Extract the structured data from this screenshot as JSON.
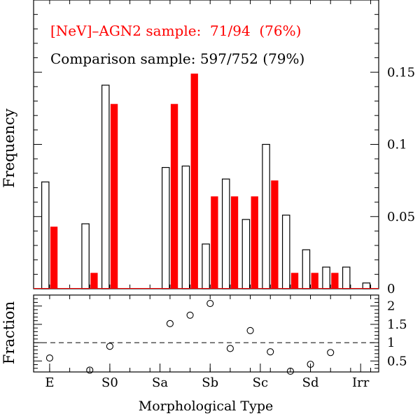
{
  "chart_data": {
    "type": "bar",
    "title": "",
    "ylabel": "Frequency",
    "ylim": [
      0,
      0.2
    ],
    "yticks": [
      0,
      0.05,
      0.1,
      0.15
    ],
    "ytick_labels": [
      "0",
      "0.05",
      "0.1",
      "0.15"
    ],
    "annotations": [
      {
        "text": "[NeV]–AGN2 sample:  71/94  (76%)",
        "color": "#ff0000"
      },
      {
        "text": "Comparison sample: 597/752 (79%)",
        "color": "#000000"
      }
    ],
    "series": [
      {
        "name": "Comparison sample",
        "style": "open",
        "color": "#000000",
        "x": [
          -5,
          -3,
          -2,
          1,
          2,
          3,
          4,
          5,
          6,
          7,
          8,
          9,
          10,
          11
        ],
        "values": [
          0.074,
          0.045,
          0.141,
          0.084,
          0.085,
          0.031,
          0.076,
          0.048,
          0.1,
          0.051,
          0.027,
          0.015,
          0.015,
          0.004
        ]
      },
      {
        "name": "[NeV]-AGN2 sample",
        "style": "filled",
        "color": "#ff0000",
        "x": [
          -5,
          -3,
          -2,
          1,
          2,
          3,
          4,
          5,
          6,
          7,
          8,
          9
        ],
        "values": [
          0.043,
          0.011,
          0.128,
          0.128,
          0.149,
          0.064,
          0.064,
          0.064,
          0.075,
          0.011,
          0.011,
          0.011
        ]
      }
    ],
    "lower_panel": {
      "ylabel": "Fraction",
      "ylim": [
        0.2,
        2.3
      ],
      "yticks": [
        0.5,
        1,
        1.5,
        2
      ],
      "ytick_labels": [
        "0.5",
        "1",
        "1.5",
        "2"
      ],
      "reference_line": 1,
      "points": [
        {
          "x": -5,
          "y": 0.58
        },
        {
          "x": -3,
          "y": 0.25
        },
        {
          "x": -2,
          "y": 0.9
        },
        {
          "x": 1,
          "y": 1.52
        },
        {
          "x": 2,
          "y": 1.75
        },
        {
          "x": 3,
          "y": 2.07
        },
        {
          "x": 4,
          "y": 0.84
        },
        {
          "x": 5,
          "y": 1.33
        },
        {
          "x": 6,
          "y": 0.75
        },
        {
          "x": 7,
          "y": 0.22
        },
        {
          "x": 8,
          "y": 0.41
        },
        {
          "x": 9,
          "y": 0.73
        }
      ]
    },
    "xlabel": "Morphological Type",
    "xlim": [
      -5.8,
      11.4
    ],
    "xticks": [
      -5,
      -2,
      0.5,
      3,
      5.5,
      8,
      10.5
    ],
    "xtick_labels": [
      "E",
      "S0",
      "Sa",
      "Sb",
      "Sc",
      "Sd",
      "Irr"
    ]
  }
}
